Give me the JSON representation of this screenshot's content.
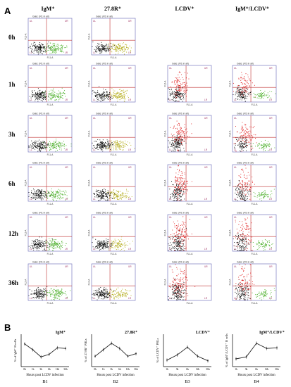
{
  "panel_a": {
    "letter": "A",
    "columns": [
      "IgM⁺",
      "27.8R⁺",
      "LCDV⁺",
      "IgM⁺/LCDV⁺"
    ],
    "rows": [
      "0h",
      "1h",
      "3h",
      "6h",
      "12h",
      "36h"
    ],
    "plot_header": "Gate: (R1 in all)",
    "axis_y": "FL2-A",
    "axis_x": "FL1-A",
    "quadrant_labels": [
      "UL",
      "UR",
      "LL",
      "LR"
    ]
  },
  "panel_b": {
    "letter": "B",
    "xlabel": "Hours post LCDV infection",
    "colors": {
      "line": "#222222"
    }
  },
  "chart_data": [
    {
      "type": "line",
      "id": "B1",
      "title": "IgM⁺",
      "ylabel": "% of IgM⁺ B cells",
      "categories": [
        "0h",
        "1h",
        "3h",
        "6h",
        "12h",
        "36h"
      ],
      "values": [
        70,
        52,
        30,
        38,
        58,
        56
      ],
      "ylim": [
        0,
        100
      ],
      "caption": "B1"
    },
    {
      "type": "line",
      "id": "B2",
      "title": "27.8R⁺",
      "ylabel": "% of 27.8R⁺ PBLs",
      "categories": [
        "0h",
        "1h",
        "3h",
        "6h",
        "12h",
        "36h"
      ],
      "values": [
        32,
        52,
        72,
        56,
        32,
        40
      ],
      "ylim": [
        0,
        100
      ],
      "caption": "B2"
    },
    {
      "type": "line",
      "id": "B3",
      "title": "LCDV⁺",
      "ylabel": "% of LCDV⁺ PBLs",
      "categories": [
        "1h",
        "3h",
        "6h",
        "12h",
        "36h"
      ],
      "values": [
        20,
        36,
        60,
        32,
        18
      ],
      "ylim": [
        0,
        100
      ],
      "caption": "B3"
    },
    {
      "type": "line",
      "id": "B4",
      "title": "IgM⁺/LCDV⁺",
      "ylabel": "% of IgM⁺/LCDV⁺ B cells",
      "categories": [
        "1h",
        "3h",
        "6h",
        "12h",
        "36h"
      ],
      "values": [
        24,
        30,
        72,
        56,
        58
      ],
      "ylim": [
        0,
        100
      ],
      "caption": "B4"
    }
  ]
}
